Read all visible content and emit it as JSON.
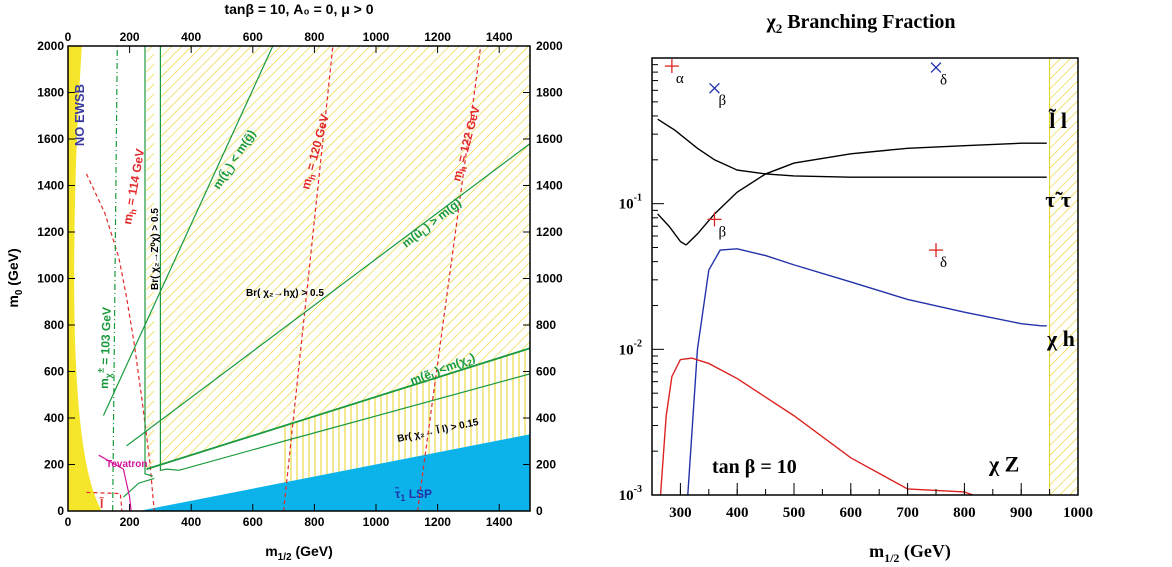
{
  "chart_data": [
    {
      "type": "line",
      "title": "tanβ = 10, A₀ = 0, μ > 0",
      "xlabel_main": "m",
      "xlabel_sub": "1/2",
      "xlabel_unit": " (GeV)",
      "ylabel_main": "m",
      "ylabel_sub": "0",
      "ylabel_unit": " (GeV)",
      "xlim": [
        0,
        1500
      ],
      "ylim": [
        0,
        2000
      ],
      "xticks": [
        "0",
        "200",
        "400",
        "600",
        "800",
        "1000",
        "1200",
        "1400"
      ],
      "yticks": [
        "0",
        "200",
        "400",
        "600",
        "800",
        "1000",
        "1200",
        "1400",
        "1600",
        "1800",
        "2000"
      ],
      "colors": {
        "ewsb": "#f5e62c",
        "lsp": "#0bb3ea",
        "green": "#1a9a3c",
        "red": "#e32b2b",
        "magenta": "#d4169a",
        "hatch": "#e8d020"
      },
      "regions": {
        "ewsb_label": "NO EWSB",
        "lsp_label_main": "τ̃",
        "lsp_label_sub": "1",
        "lsp_label_rest": " LSP",
        "lsp_boundary": [
          [
            230,
            0
          ],
          [
            1500,
            330
          ]
        ]
      },
      "lines": {
        "mh114": {
          "label": "m",
          "sub": "h",
          "rest": " = 114 GeV",
          "points": [
            [
              60,
              1450
            ],
            [
              120,
              1280
            ],
            [
              165,
              1090
            ],
            [
              190,
              920
            ],
            [
              215,
              720
            ],
            [
              240,
              480
            ],
            [
              265,
              220
            ],
            [
              280,
              0
            ]
          ]
        },
        "mh120": {
          "label": "m",
          "sub": "h",
          "rest": " = 120 GeV",
          "points": [
            [
              700,
              0
            ],
            [
              860,
              2000
            ]
          ]
        },
        "mh122": {
          "label": "m",
          "sub": "h",
          "rest": " = 122 GeV",
          "points": [
            [
              1135,
              0
            ],
            [
              1340,
              2000
            ]
          ]
        },
        "mchi103": {
          "label": "m",
          "sub": "χ",
          "sup": "±",
          "rest": " = 103 GeV",
          "points": [
            [
              145,
              0
            ],
            [
              160,
              2000
            ]
          ]
        },
        "mt_lt_mg": {
          "label": "m(t̃",
          "sub": "L",
          "rest": ") < m(g̃)",
          "points": [
            [
              115,
              410
            ],
            [
              665,
              2000
            ]
          ]
        },
        "mu_gt_mg": {
          "label": "m(ũ",
          "sub": "L",
          "rest": ") > m(g̃)",
          "points": [
            [
              190,
              280
            ],
            [
              1500,
              1580
            ]
          ]
        },
        "me_lt_mchi": {
          "label": "m(ẽ",
          "sub": "L",
          "rest": ")<m(χ",
          "sub2": "2",
          "rest2": ")",
          "points": [
            [
              255,
              180
            ],
            [
              1500,
              700
            ]
          ]
        },
        "br_h": {
          "label": "Br( χ₂→hχ) > 0.5"
        },
        "br_z": {
          "label": "Br( χ₂→Z⁰χ) > 0.5"
        },
        "br_l": {
          "label": "Br( χ₂→ l̃ l) > 0.15"
        },
        "tevatron": {
          "label": "Tevatron"
        },
        "lep_l": {
          "label": "l̃"
        }
      }
    },
    {
      "type": "line",
      "title_main": "χ",
      "title_sub": "2",
      "title_rest": " Branching Fraction",
      "xlabel_main": "m",
      "xlabel_sub": "1/2",
      "xlabel_unit": " (GeV)",
      "xlim": [
        250,
        1000
      ],
      "ylim_log10": [
        -3,
        0
      ],
      "log_y": true,
      "xticks": [
        "300",
        "400",
        "500",
        "600",
        "700",
        "800",
        "900",
        "1000"
      ],
      "yticks": [
        {
          "base": "10",
          "exp": "-3",
          "value": -3
        },
        {
          "base": "10",
          "exp": "-2",
          "value": -2
        },
        {
          "base": "10",
          "exp": "-1",
          "value": -1
        }
      ],
      "annotation": "tan  β = 10",
      "excluded_from": 950,
      "series": [
        {
          "name": "l̃ l",
          "color": "#000000",
          "x": [
            310,
            330,
            360,
            400,
            450,
            500,
            600,
            700,
            800,
            900,
            945
          ],
          "y": [
            0.052,
            0.062,
            0.085,
            0.12,
            0.16,
            0.19,
            0.22,
            0.24,
            0.25,
            0.26,
            0.26
          ]
        },
        {
          "name": "τ̃ τ",
          "color": "#000000",
          "x": [
            260,
            290,
            330,
            360,
            400,
            450,
            500,
            600,
            700,
            800,
            900,
            945
          ],
          "y": [
            0.38,
            0.32,
            0.24,
            0.2,
            0.17,
            0.16,
            0.155,
            0.152,
            0.152,
            0.152,
            0.152,
            0.152
          ]
        },
        {
          "name": "τ̃ τ low",
          "color": "#000000",
          "x": [
            260,
            280,
            300,
            310
          ],
          "y": [
            0.085,
            0.07,
            0.055,
            0.052
          ]
        },
        {
          "name": "χ h",
          "color": "#2233aa",
          "x": [
            313,
            330,
            350,
            370,
            400,
            450,
            500,
            600,
            700,
            800,
            900,
            935,
            945
          ],
          "y": [
            0.001,
            0.01,
            0.035,
            0.048,
            0.049,
            0.044,
            0.038,
            0.029,
            0.022,
            0.018,
            0.015,
            0.0145,
            0.0145
          ]
        },
        {
          "name": "χ Z",
          "color": "#dd2222",
          "x": [
            265,
            275,
            285,
            300,
            320,
            350,
            400,
            500,
            600,
            700,
            800,
            815
          ],
          "y": [
            0.001,
            0.0035,
            0.0065,
            0.0085,
            0.0087,
            0.008,
            0.0063,
            0.0035,
            0.0018,
            0.0011,
            0.00105,
            0.001
          ]
        }
      ],
      "markers": [
        {
          "label": "α",
          "color": "#dd2222",
          "shape": "plus",
          "x": 285,
          "y": 0.88
        },
        {
          "label": "β",
          "color": "#2233aa",
          "shape": "cross",
          "x": 360,
          "y": 0.62
        },
        {
          "label": "δ",
          "color": "#2233aa",
          "shape": "cross",
          "x": 750,
          "y": 0.86
        },
        {
          "label": "β",
          "color": "#dd2222",
          "shape": "plus",
          "x": 360,
          "y": 0.078
        },
        {
          "label": "δ",
          "color": "#dd2222",
          "shape": "plus",
          "x": 750,
          "y": 0.048
        }
      ],
      "series_labels": [
        {
          "main": "l̃ l",
          "x": 965,
          "y": 0.33
        },
        {
          "main": "τ̃ τ",
          "x": 965,
          "y": 0.095
        },
        {
          "main": "χ h",
          "x": 970,
          "y": 0.0105
        },
        {
          "main": "χ Z",
          "x": 870,
          "y": 0.00145
        }
      ]
    }
  ]
}
